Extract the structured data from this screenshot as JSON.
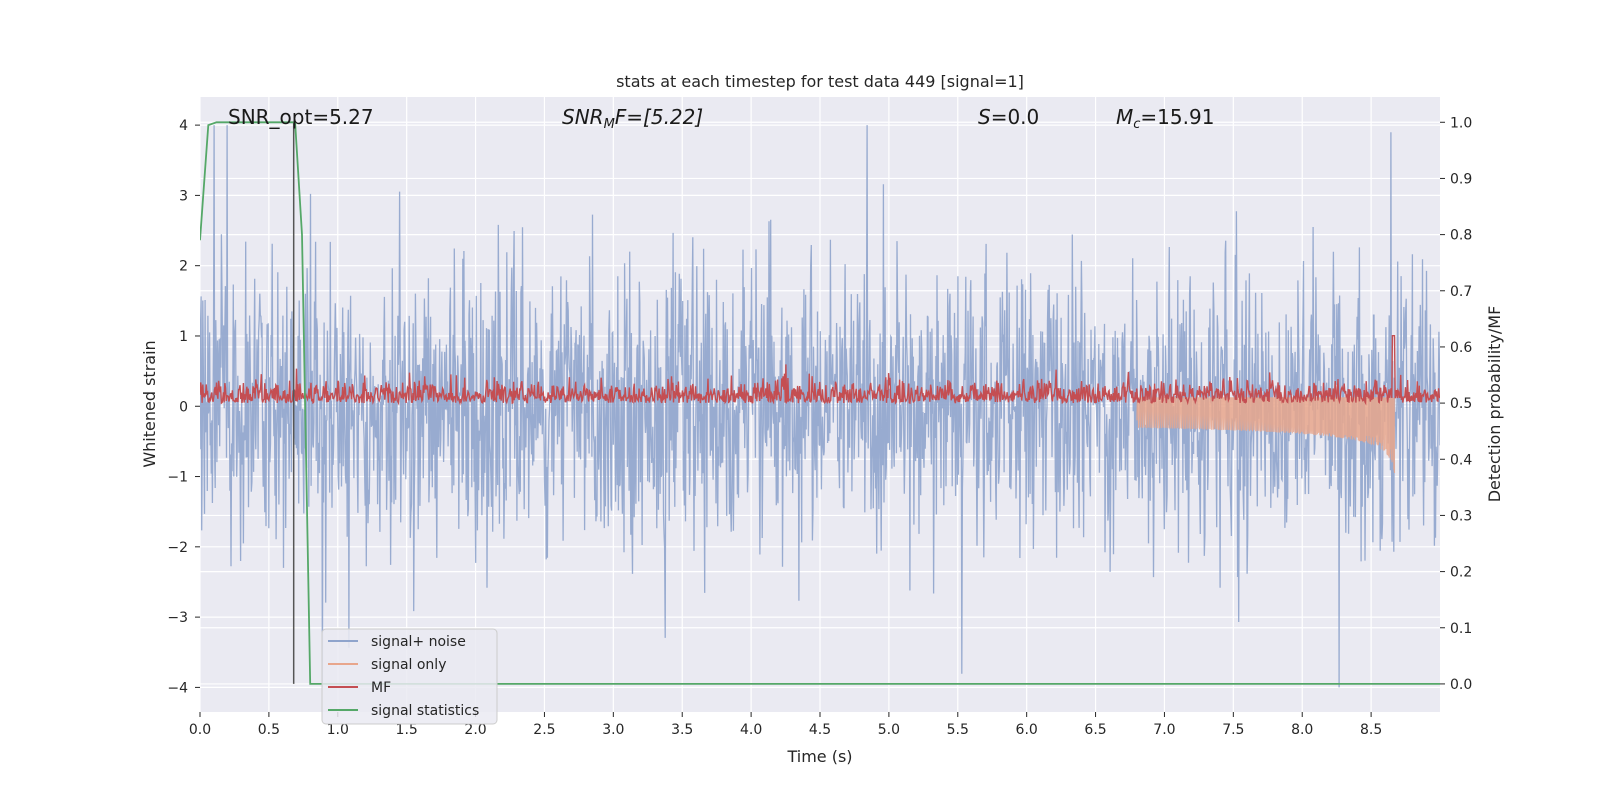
{
  "chart_data": {
    "type": "line",
    "title": "stats at each timestep for test data 449 [signal=1]",
    "xlabel": "Time (s)",
    "ylabel_left": "Whitened strain",
    "ylabel_right": "Detection probability/MF",
    "xlim": [
      0.0,
      9.0
    ],
    "ylim_left": [
      -4.35,
      4.4
    ],
    "ylim_right": [
      -0.05,
      1.045
    ],
    "xticks": [
      "0.0",
      "0.5",
      "1.0",
      "1.5",
      "2.0",
      "2.5",
      "3.0",
      "3.5",
      "4.0",
      "4.5",
      "5.0",
      "5.5",
      "6.0",
      "6.5",
      "7.0",
      "7.5",
      "8.0",
      "8.5"
    ],
    "yticks_left": [
      "−4",
      "−3",
      "−2",
      "−1",
      "0",
      "1",
      "2",
      "3",
      "4"
    ],
    "yticks_right": [
      "0.0",
      "0.1",
      "0.2",
      "0.3",
      "0.4",
      "0.5",
      "0.6",
      "0.7",
      "0.8",
      "0.9",
      "1.0"
    ],
    "grid": true,
    "legend_position": "lower-left",
    "annotations": {
      "snr_opt": "SNR_opt=5.27",
      "snr_mf_label": "SNR",
      "snr_mf_sub": "M",
      "snr_mf_tail": "F=[5.22]",
      "s_label": "S",
      "s_tail": "=0.0",
      "mc_label": "M",
      "mc_sub": "c",
      "mc_tail": "=15.91"
    },
    "vertical_marker_x": 0.68,
    "series": [
      {
        "name": "signal+ noise",
        "axis": "left",
        "color": "#8fa4cc",
        "description_values": "noise band roughly between -2.5 and 2.5 with spikes up to about 4 and down to about -4"
      },
      {
        "name": "signal only",
        "axis": "left",
        "color": "#e8a68c",
        "chirp_end_time": 8.67,
        "chirp_peak_amplitude": [
          -0.95,
          1.0
        ]
      },
      {
        "name": "MF",
        "axis": "right",
        "color": "#c44e52",
        "baseline_range": [
          0.5,
          0.57
        ],
        "peak": {
          "x": 8.66,
          "y": 0.62
        }
      },
      {
        "name": "signal statistics",
        "axis": "right",
        "color": "#55a868",
        "x": [
          0.0,
          0.06,
          0.12,
          0.3,
          0.6,
          0.69,
          0.74,
          0.8,
          0.82,
          9.0
        ],
        "y": [
          0.79,
          0.995,
          1.0,
          1.0,
          1.0,
          1.0,
          0.8,
          0.0,
          0.0,
          0.0
        ]
      }
    ],
    "colors": {
      "plot_background": "#eaeaf2",
      "grid": "#ffffff",
      "marker_line": "#555555"
    }
  }
}
